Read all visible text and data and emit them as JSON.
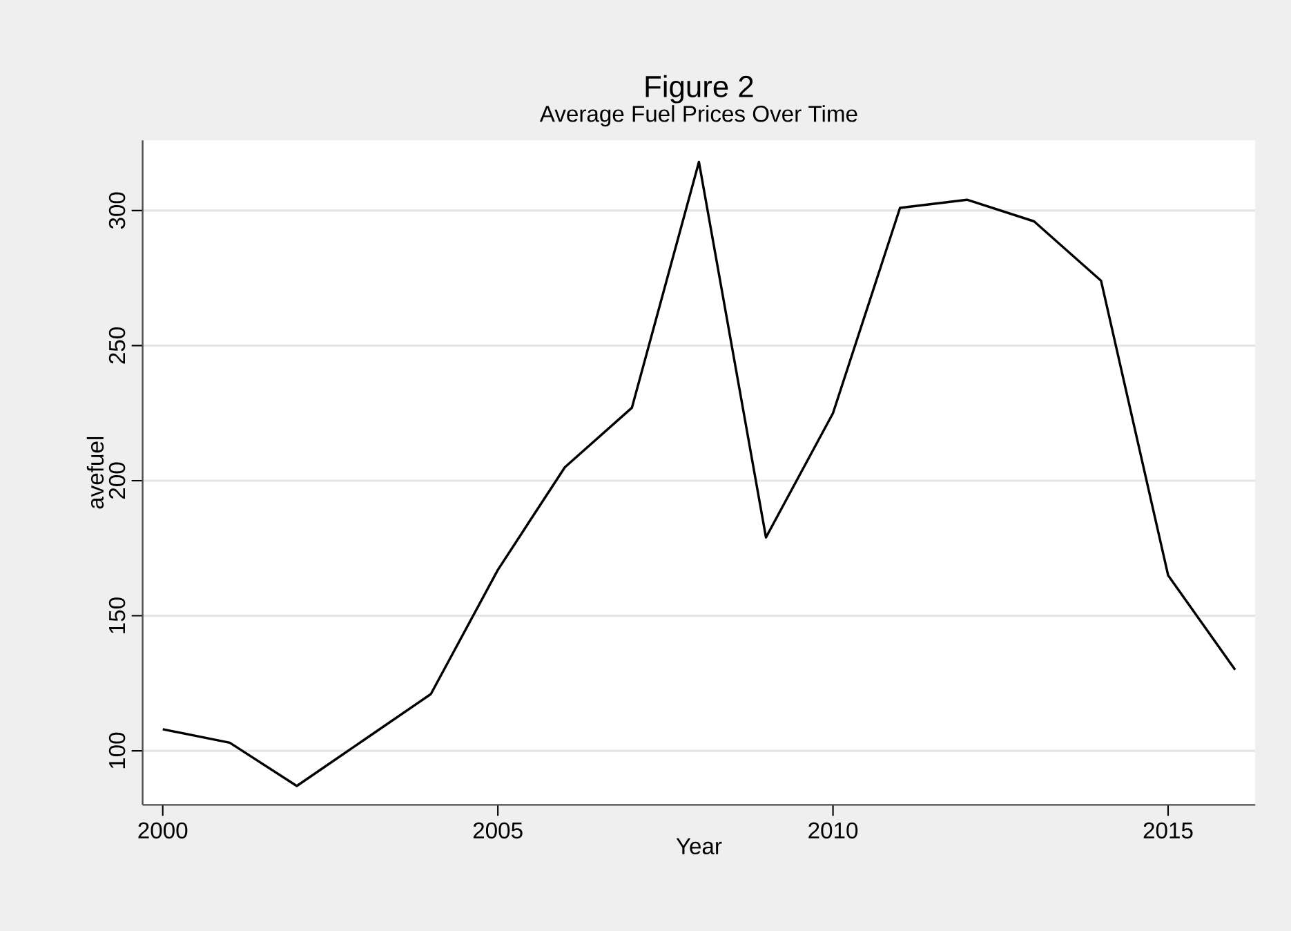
{
  "chart_data": {
    "type": "line",
    "title": "Figure 2",
    "subtitle": "Average Fuel Prices Over Time",
    "xlabel": "Year",
    "ylabel": "avefuel",
    "x": [
      2000,
      2001,
      2002,
      2003,
      2004,
      2005,
      2006,
      2007,
      2008,
      2009,
      2010,
      2011,
      2012,
      2013,
      2014,
      2015,
      2016
    ],
    "values": [
      108,
      103,
      87,
      104,
      121,
      167,
      205,
      227,
      318,
      179,
      225,
      301,
      304,
      296,
      274,
      165,
      130
    ],
    "color": "#000000",
    "xlim": [
      1999.7,
      2016.3
    ],
    "ylim": [
      80,
      326
    ],
    "xticks": [
      2000,
      2005,
      2010,
      2015
    ],
    "yticks": [
      100,
      150,
      200,
      250,
      300
    ],
    "grid": "y"
  }
}
